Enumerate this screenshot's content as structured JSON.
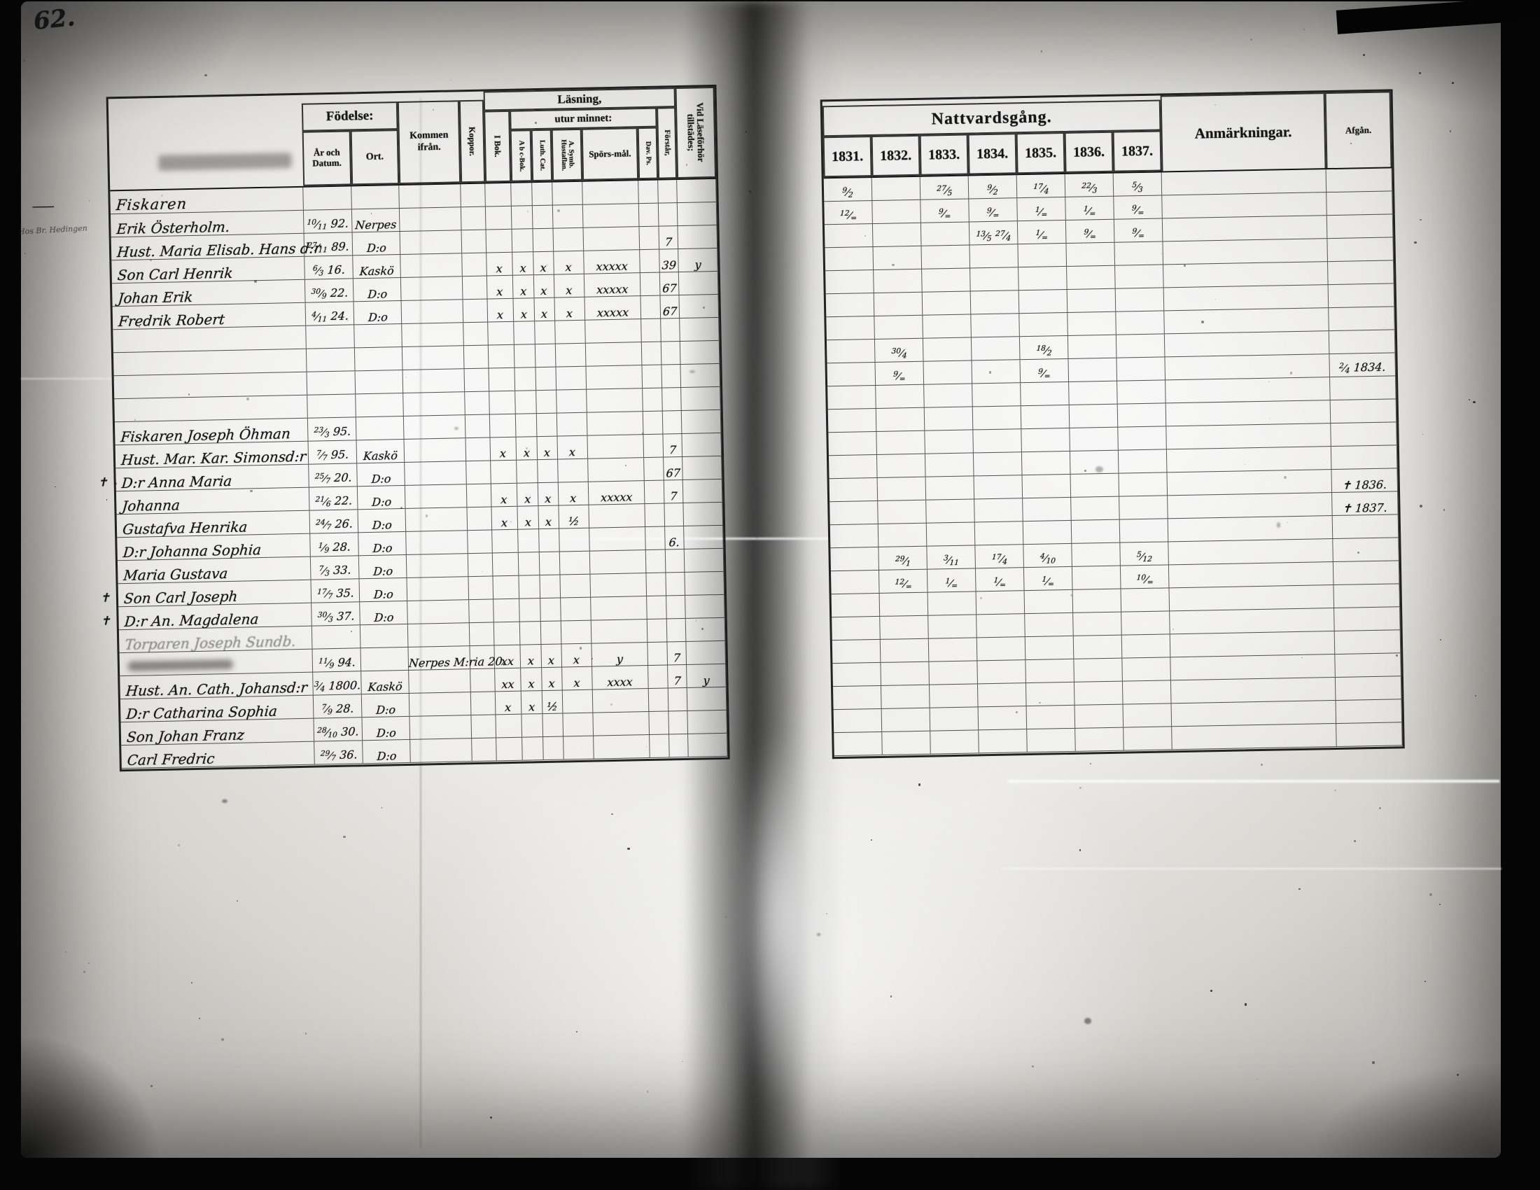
{
  "page_label": "62.",
  "margin_note": "Hos Br. Hedingen",
  "left_table": {
    "headers": {
      "fodelse": "Födelse:",
      "ar_och_datum": "År och Datum.",
      "ort": "Ort.",
      "kommen": "Kommen ifrån.",
      "koppor": "Koppor.",
      "lasning": "Läsning,",
      "i_bok": "I Bok.",
      "utur_minnet": "utur minnet:",
      "abc_bok": "A b c-Bok.",
      "luth_cat": "Luth. Cat.",
      "symb_hustaflan": "A. Symb. Hustaflan.",
      "sporsmal": "Spörs-mål.",
      "dav_ps": "Dav. Ps.",
      "forstar": "Förstår,",
      "vid_laseforhor": "Vid Läseförhör tillstädes;"
    },
    "rows": [
      {
        "heading": "Fiskaren",
        "margin": "——"
      },
      {
        "name": "Erik Österholm.",
        "date": "10/11 92.",
        "ort": "Nerpes"
      },
      {
        "name": "Hust. Maria Elisab. Hans d:r",
        "date": "27/11 89.",
        "ort": "D:o",
        "forstar": "7"
      },
      {
        "name": "Son Carl Henrik",
        "date": "6/3 16.",
        "ort": "Kaskö",
        "ibok": "x",
        "abc": "x",
        "luth": "x",
        "symb": "x",
        "spors": "xxxxx",
        "forstar": "39",
        "vid": "y"
      },
      {
        "name": "Johan Erik",
        "date": "30/9 22.",
        "ort": "D:o",
        "ibok": "x",
        "abc": "x",
        "luth": "x",
        "symb": "x",
        "spors": "xxxxx",
        "forstar": "67"
      },
      {
        "name": "Fredrik Robert",
        "date": "4/11 24.",
        "ort": "D:o",
        "ibok": "x",
        "abc": "x",
        "luth": "x",
        "symb": "x",
        "spors": "xxxxx",
        "forstar": "67"
      },
      {},
      {},
      {},
      {},
      {
        "name": "Fiskaren Joseph Öhman",
        "date": "23/3 95."
      },
      {
        "name": "Hust. Mar. Kar. Simonsd:r",
        "date": "7/7 95.",
        "ort": "Kaskö",
        "ibok": "x",
        "abc": "x",
        "luth": "x",
        "symb": "x",
        "forstar": "7"
      },
      {
        "margin": "✝",
        "name": "D:r Anna Maria",
        "date": "25/7 20.",
        "ort": "D:o",
        "forstar": "67"
      },
      {
        "name": "Johanna",
        "date": "21/6 22.",
        "ort": "D:o",
        "ibok": "x",
        "abc": "x",
        "luth": "x",
        "symb": "x",
        "spors": "xxxxx",
        "forstar": "7"
      },
      {
        "name": "Gustafva Henrika",
        "date": "24/7 26.",
        "ort": "D:o",
        "ibok": "x",
        "abc": "x",
        "luth": "x",
        "symb": "½"
      },
      {
        "name": "D:r Johanna Sophia",
        "date": "1/9 28.",
        "ort": "D:o",
        "forstar": "6."
      },
      {
        "name": "Maria Gustava",
        "date": "7/3 33.",
        "ort": "D:o"
      },
      {
        "margin": "✝",
        "name": "Son Carl Joseph",
        "date": "17/7 35.",
        "ort": "D:o"
      },
      {
        "margin": "✝",
        "name": "D:r An. Magdalena",
        "date": "30/3 37.",
        "ort": "D:o"
      },
      {
        "name": "Torparen Joseph Sundb.",
        "faint": true
      },
      {
        "name": "",
        "smudge": true,
        "date": "11/9 94.",
        "kommen": "Nerpes M:ria 20.",
        "ibok": "xx",
        "abc": "x",
        "luth": "x",
        "symb": "x",
        "spors": "y",
        "forstar": "7"
      },
      {
        "name": "Hust. An. Cath. Johansd:r",
        "date": "3/4 1800.",
        "ort": "Kaskö",
        "ibok": "xx",
        "abc": "x",
        "luth": "x",
        "symb": "x",
        "spors": "xxxx",
        "forstar": "7",
        "vid": "y"
      },
      {
        "name": "D:r Catharina Sophia",
        "date": "7/9 28.",
        "ort": "D:o",
        "ibok": "x",
        "abc": "x",
        "luth": "½"
      },
      {
        "name": "Son Johan Franz",
        "date": "28/10 30.",
        "ort": "D:o"
      },
      {
        "name": "Carl Fredric",
        "date": "29/7 36.",
        "ort": "D:o"
      }
    ]
  },
  "right_table": {
    "title": "Nattvardsgång.",
    "years": [
      "1831.",
      "1832.",
      "1833.",
      "1834.",
      "1835.",
      "1836.",
      "1837."
    ],
    "anmarkningar": "Anmärkningar.",
    "afgan": "Afgån.",
    "rows": [
      {
        "y1831": "9/2",
        "y1833": "27/5",
        "y1834": "9/2",
        "y1835": "17/4",
        "y1836": "22/3",
        "y1837": "5/3"
      },
      {
        "y1831": "12/=",
        "y1833": "9/=",
        "y1834": "9/=",
        "y1835": "1/=",
        "y1836": "1/=",
        "y1837": "9/="
      },
      {
        "y1834": "13/5 27/4",
        "y1835": "1/=",
        "y1836": "9/=",
        "y1837": "9/="
      },
      {},
      {},
      {},
      {},
      {
        "y1832": "30/4",
        "y1835": "18/2"
      },
      {
        "y1832": "9/=",
        "y1835": "9/=",
        "afgan": "2/4 1834."
      },
      {},
      {},
      {},
      {},
      {
        "afgan": "✝ 1836."
      },
      {
        "afgan": "✝ 1837."
      },
      {},
      {
        "y1832": "29/1",
        "y1833": "3/11",
        "y1834": "17/4",
        "y1835": "4/10",
        "y1837": "5/12"
      },
      {
        "y1832": "12/=",
        "y1833": "1/=",
        "y1834": "1/=",
        "y1835": "1/=",
        "y1837": "10/="
      },
      {},
      {},
      {},
      {},
      {},
      {},
      {}
    ]
  }
}
